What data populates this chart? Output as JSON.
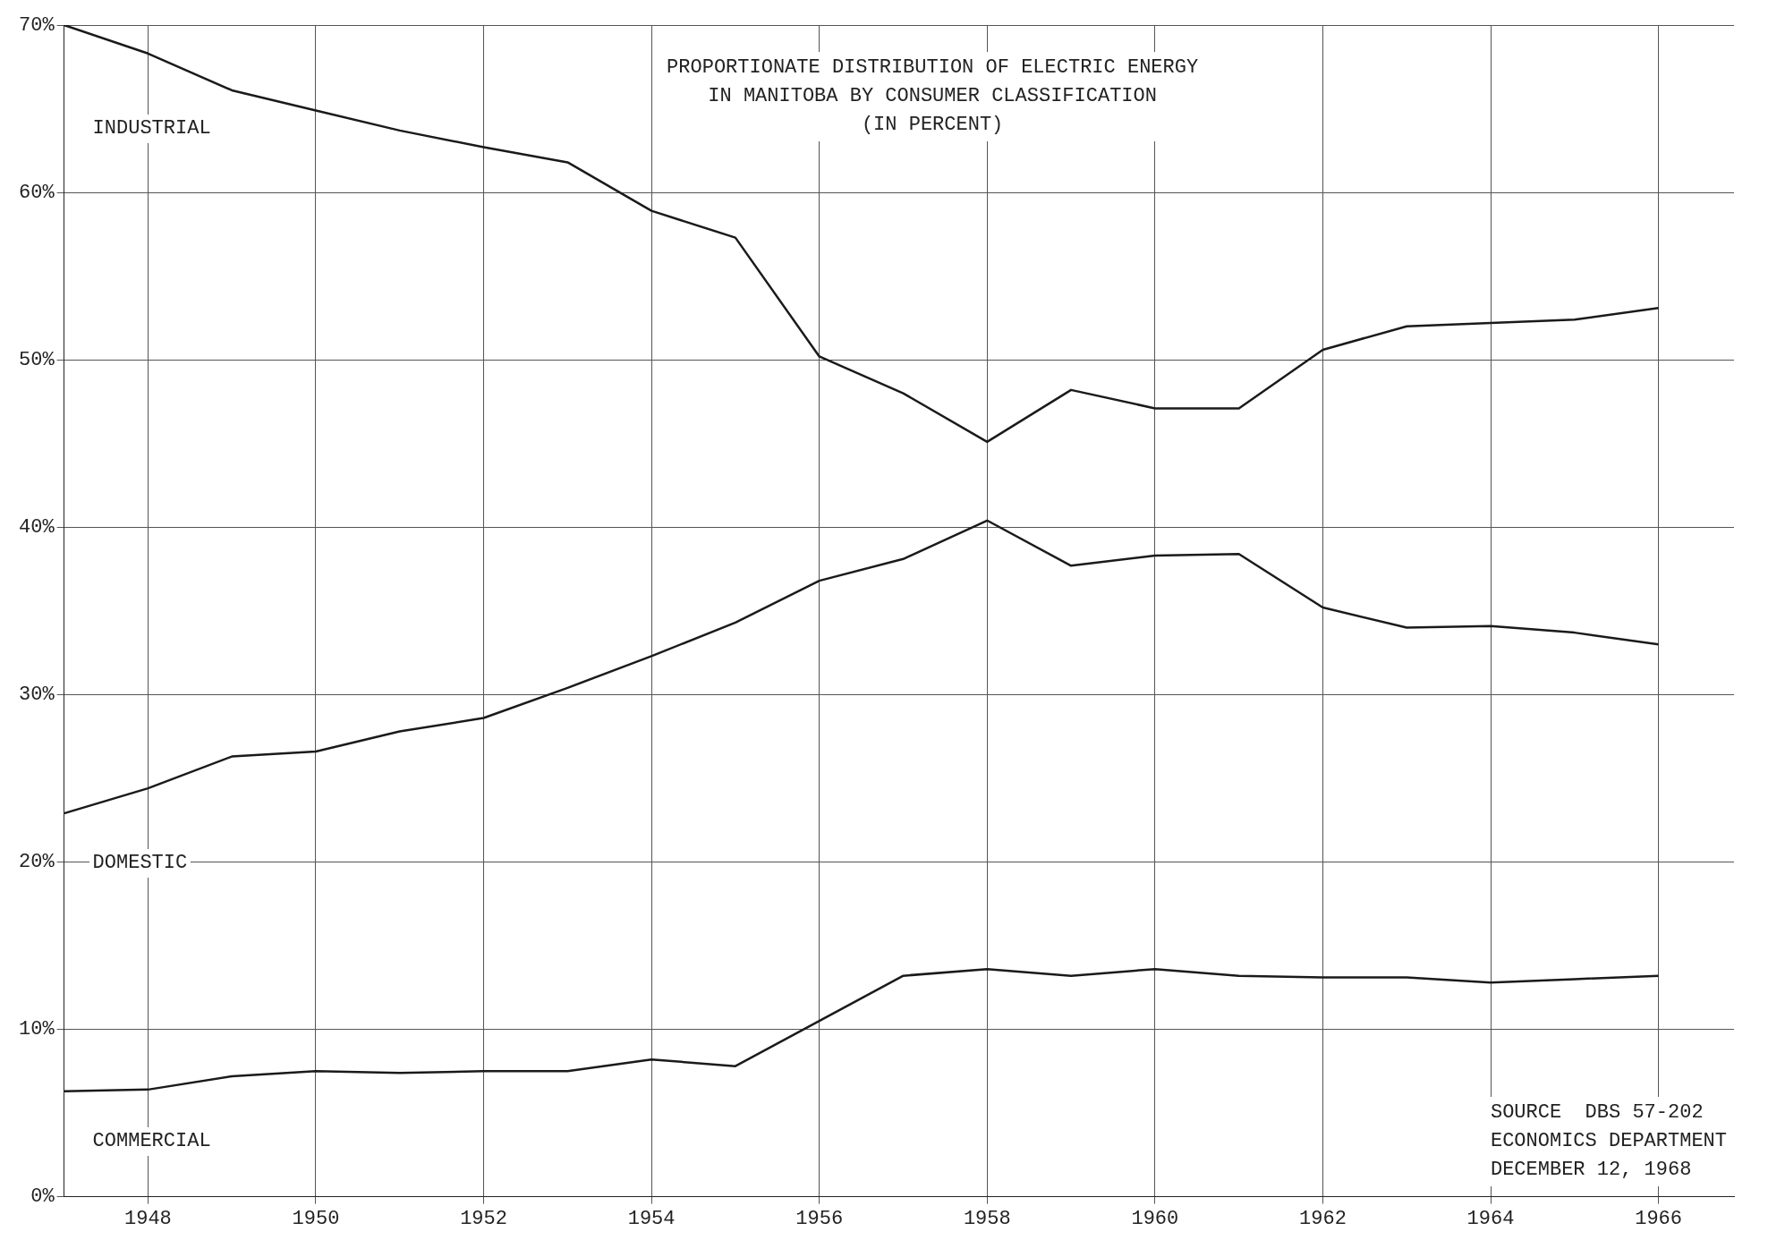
{
  "chart_data": {
    "type": "line",
    "title": "PROPORTIONATE DISTRIBUTION OF ELECTRIC ENERGY\nIN MANITOBA BY CONSUMER CLASSIFICATION\n(IN PERCENT)",
    "annotations": [
      "SOURCE  DBS 57-202\nECONOMICS DEPARTMENT\nDECEMBER 12, 1968"
    ],
    "x": [
      1947,
      1948,
      1949,
      1950,
      1951,
      1952,
      1953,
      1954,
      1955,
      1956,
      1957,
      1958,
      1959,
      1960,
      1961,
      1962,
      1963,
      1964,
      1965,
      1966
    ],
    "series": [
      {
        "name": "INDUSTRIAL",
        "color": "#1a1a1a",
        "values": [
          70,
          68.3,
          66.1,
          64.9,
          63.7,
          62.7,
          61.8,
          58.9,
          57.3,
          50.2,
          48.0,
          45.1,
          48.2,
          47.1,
          47.1,
          50.6,
          52.0,
          52.2,
          52.4,
          53.1
        ]
      },
      {
        "name": "DOMESTIC",
        "color": "#1a1a1a",
        "values": [
          22.9,
          24.4,
          26.3,
          26.6,
          27.8,
          28.6,
          30.4,
          32.3,
          34.3,
          36.8,
          38.1,
          40.4,
          37.7,
          38.3,
          38.4,
          35.2,
          34.0,
          34.1,
          33.7,
          33.0
        ]
      },
      {
        "name": "COMMERCIAL",
        "color": "#1a1a1a",
        "values": [
          6.3,
          6.4,
          7.2,
          7.5,
          7.4,
          7.5,
          7.5,
          8.2,
          7.8,
          10.5,
          13.2,
          13.6,
          13.2,
          13.6,
          13.2,
          13.1,
          13.1,
          12.8,
          13.0,
          13.2
        ]
      }
    ],
    "xlim": [
      1947,
      1966.9
    ],
    "xticks": [
      1948,
      1950,
      1952,
      1954,
      1956,
      1958,
      1960,
      1962,
      1964,
      1966
    ],
    "ylim": [
      0,
      70
    ],
    "yticks": [
      {
        "value": 0,
        "label": "0%"
      },
      {
        "value": 10,
        "label": "10%"
      },
      {
        "value": 20,
        "label": "20%"
      },
      {
        "value": 30,
        "label": "30%"
      },
      {
        "value": 40,
        "label": "40%"
      },
      {
        "value": 50,
        "label": "50%"
      },
      {
        "value": 60,
        "label": "60%"
      },
      {
        "value": 70,
        "label": "70%"
      }
    ],
    "grid": true,
    "legend": false,
    "marker": "none",
    "line_style": "solid"
  }
}
